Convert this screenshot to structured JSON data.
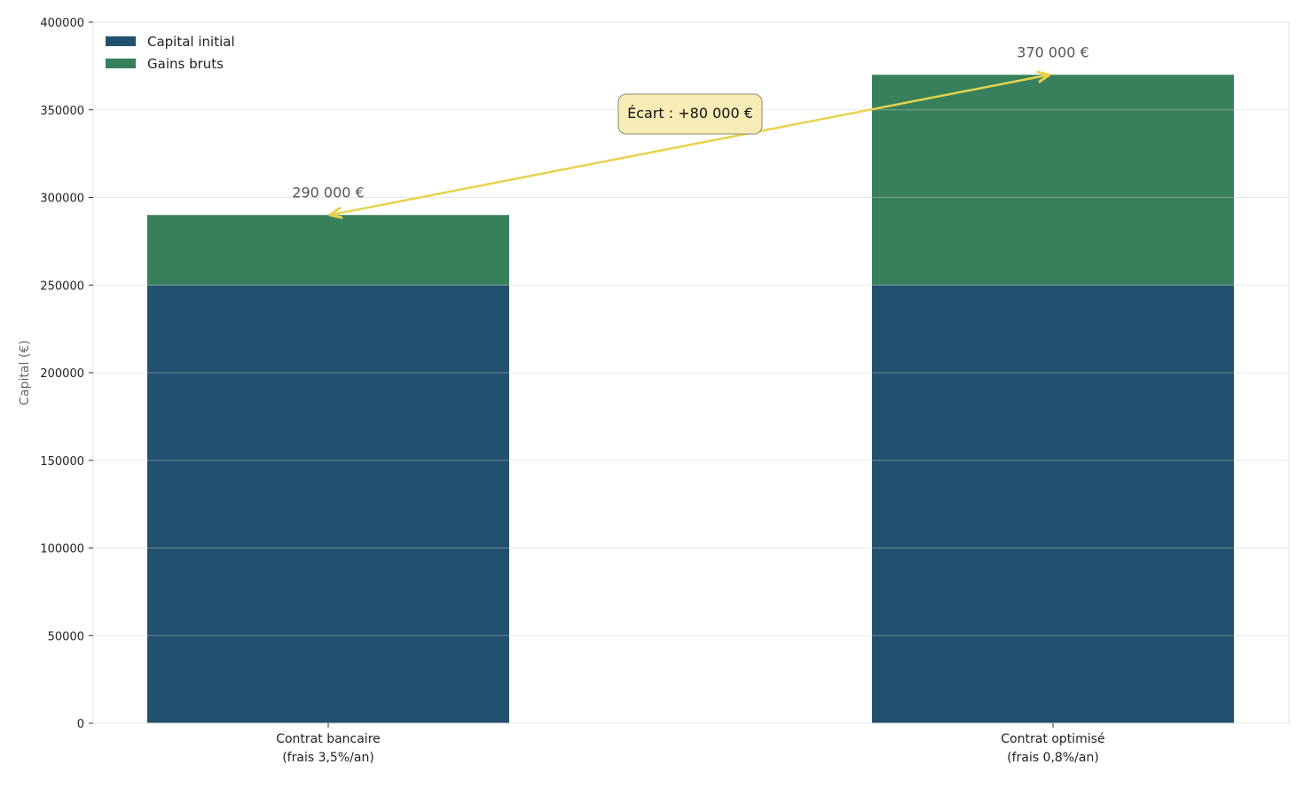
{
  "chart_data": {
    "type": "bar",
    "stacked": true,
    "categories": [
      "Contrat bancaire\n(frais 3,5%/an)",
      "Contrat optimisé\n(frais 0,8%/an)"
    ],
    "series": [
      {
        "name": "Capital initial",
        "values": [
          250000,
          250000
        ],
        "color": "#22506f"
      },
      {
        "name": "Gains bruts",
        "values": [
          40000,
          120000
        ],
        "color": "#38805c"
      }
    ],
    "data_labels": [
      "290 000 €",
      "370 000 €"
    ],
    "annotation": {
      "text": "Écart : +80 000 €",
      "from": 290000,
      "to": 370000,
      "arrow_color": "#e8d24e",
      "box_color": "#f7ecb5"
    },
    "title": "",
    "xlabel": "",
    "ylabel": "Capital (€)",
    "ylim": [
      0,
      400000
    ],
    "yticks": [
      0,
      50000,
      100000,
      150000,
      200000,
      250000,
      300000,
      350000,
      400000
    ],
    "grid": true,
    "legend": "top-left"
  }
}
